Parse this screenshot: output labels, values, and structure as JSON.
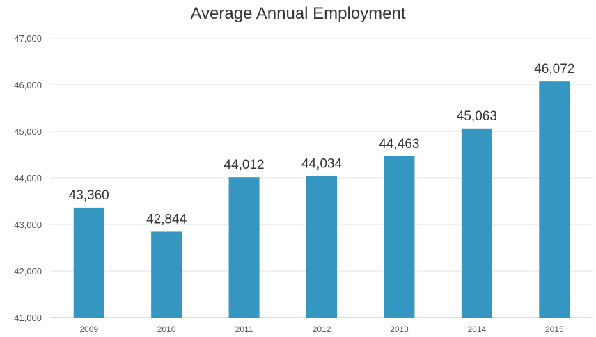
{
  "chart_data": {
    "type": "bar",
    "title": "Average Annual Employment",
    "xlabel": "",
    "ylabel": "",
    "categories": [
      "2009",
      "2010",
      "2011",
      "2012",
      "2013",
      "2014",
      "2015"
    ],
    "values": [
      43360,
      42844,
      44012,
      44034,
      44463,
      45063,
      46072
    ],
    "data_labels": [
      "43,360",
      "42,844",
      "44,012",
      "44,034",
      "44,463",
      "45,063",
      "46,072"
    ],
    "ylim": [
      41000,
      47000
    ],
    "yticks": [
      41000,
      42000,
      43000,
      44000,
      45000,
      46000,
      47000
    ],
    "ytick_labels": [
      "41,000",
      "42,000",
      "43,000",
      "44,000",
      "45,000",
      "46,000",
      "47,000"
    ],
    "grid": true,
    "legend": "none",
    "bar_color": "#3596c1"
  }
}
